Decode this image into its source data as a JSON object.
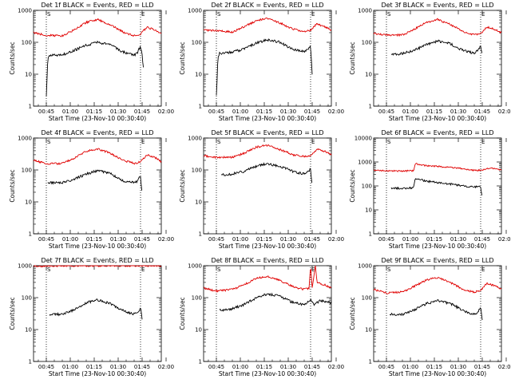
{
  "chart_data": [
    {
      "type": "line",
      "title": "Det 1f BLACK = Events, RED = LLD",
      "xlabel": "Start Time (23-Nov-10 00:30:40)",
      "ylabel": "Counts/sec",
      "ylim": [
        1,
        1000
      ],
      "yscale": "log",
      "yticks": [
        "1",
        "10",
        "100",
        "1000"
      ],
      "xticks": [
        "00:45",
        "01:00",
        "01:15",
        "01:30",
        "01:45",
        "02:00"
      ],
      "xlim_minutes": [
        37,
        117
      ],
      "markers": {
        "S_min": 45,
        "E_min": 104,
        "label_s": "S",
        "label_e": "E"
      },
      "series": [
        {
          "color": "#e00000",
          "x": [
            37,
            45,
            55,
            62,
            70,
            77,
            85,
            93,
            100,
            104,
            108,
            113,
            117
          ],
          "y": [
            200,
            165,
            160,
            240,
            420,
            520,
            360,
            210,
            160,
            180,
            300,
            240,
            190
          ]
        },
        {
          "color": "#000000",
          "x": [
            45,
            46,
            47,
            55,
            62,
            70,
            77,
            85,
            93,
            100,
            102,
            103,
            104,
            105,
            106
          ],
          "y": [
            2,
            35,
            40,
            40,
            55,
            80,
            100,
            85,
            50,
            40,
            45,
            60,
            70,
            40,
            12
          ]
        }
      ]
    },
    {
      "type": "line",
      "title": "Det 2f BLACK = Events, RED = LLD",
      "xlabel": "Start Time (23-Nov-10 00:30:40)",
      "ylabel": "Counts/sec",
      "ylim": [
        1,
        1000
      ],
      "yscale": "log",
      "yticks": [
        "1",
        "10",
        "100",
        "1000"
      ],
      "xticks": [
        "00:45",
        "01:00",
        "01:15",
        "01:30",
        "01:45",
        "02:00"
      ],
      "xlim_minutes": [
        37,
        117
      ],
      "markers": {
        "S_min": 45,
        "E_min": 104,
        "label_s": "S",
        "label_e": "E"
      },
      "series": [
        {
          "color": "#e00000",
          "x": [
            37,
            45,
            55,
            62,
            70,
            77,
            85,
            93,
            100,
            104,
            108,
            113,
            117
          ],
          "y": [
            240,
            230,
            210,
            300,
            480,
            560,
            400,
            260,
            220,
            240,
            380,
            300,
            240
          ]
        },
        {
          "color": "#000000",
          "x": [
            45,
            46,
            47,
            55,
            62,
            70,
            77,
            85,
            93,
            100,
            102,
            103,
            104,
            105
          ],
          "y": [
            2,
            35,
            45,
            50,
            60,
            95,
            120,
            100,
            60,
            50,
            60,
            70,
            80,
            10
          ]
        }
      ]
    },
    {
      "type": "line",
      "title": "Det 3f BLACK = Events, RED = LLD",
      "xlabel": "Start Time (23-Nov-10 00:30:40)",
      "ylabel": "Counts/sec",
      "ylim": [
        1,
        1000
      ],
      "yscale": "log",
      "yticks": [
        "1",
        "10",
        "100",
        "1000"
      ],
      "xticks": [
        "00:45",
        "01:00",
        "01:15",
        "01:30",
        "01:45",
        "02:00"
      ],
      "xlim_minutes": [
        37,
        117
      ],
      "markers": {
        "S_min": 45,
        "E_min": 104,
        "label_s": "S",
        "label_e": "E"
      },
      "series": [
        {
          "color": "#e00000",
          "x": [
            37,
            45,
            55,
            62,
            70,
            77,
            85,
            93,
            100,
            104,
            108,
            113,
            117
          ],
          "y": [
            190,
            170,
            170,
            250,
            420,
            520,
            360,
            220,
            170,
            190,
            300,
            250,
            200
          ]
        },
        {
          "color": "#000000",
          "x": [
            48,
            55,
            62,
            70,
            77,
            85,
            93,
            100,
            102,
            103,
            104,
            105
          ],
          "y": [
            40,
            45,
            55,
            85,
            110,
            90,
            55,
            45,
            55,
            60,
            80,
            40
          ]
        }
      ]
    },
    {
      "type": "line",
      "title": "Det 4f BLACK = Events, RED = LLD",
      "xlabel": "Start Time (23-Nov-10 00:30:40)",
      "ylabel": "Counts/sec",
      "ylim": [
        1,
        1000
      ],
      "yscale": "log",
      "yticks": [
        "1",
        "10",
        "100",
        "1000"
      ],
      "xticks": [
        "00:45",
        "01:00",
        "01:15",
        "01:30",
        "01:45",
        "02:00"
      ],
      "xlim_minutes": [
        37,
        117
      ],
      "markers": {
        "S_min": 45,
        "E_min": 104,
        "label_s": "S",
        "label_e": "E"
      },
      "series": [
        {
          "color": "#e00000",
          "x": [
            37,
            45,
            55,
            62,
            70,
            77,
            85,
            93,
            100,
            104,
            108,
            113,
            117
          ],
          "y": [
            200,
            160,
            160,
            230,
            380,
            460,
            340,
            200,
            160,
            180,
            300,
            250,
            180
          ]
        },
        {
          "color": "#000000",
          "x": [
            46,
            55,
            62,
            70,
            77,
            85,
            93,
            100,
            102,
            103,
            104,
            105
          ],
          "y": [
            40,
            40,
            50,
            75,
            95,
            80,
            45,
            40,
            45,
            55,
            60,
            18
          ]
        }
      ]
    },
    {
      "type": "line",
      "title": "Det 5f BLACK = Events, RED = LLD",
      "xlabel": "Start Time (23-Nov-10 00:30:40)",
      "ylabel": "Counts/sec",
      "ylim": [
        1,
        1000
      ],
      "yscale": "log",
      "yticks": [
        "1",
        "10",
        "100",
        "1000"
      ],
      "xticks": [
        "00:45",
        "01:00",
        "01:15",
        "01:30",
        "01:45",
        "02:00"
      ],
      "xlim_minutes": [
        37,
        117
      ],
      "markers": {
        "S_min": 45,
        "E_min": 104,
        "label_s": "S",
        "label_e": "E"
      },
      "series": [
        {
          "color": "#e00000",
          "x": [
            37,
            45,
            55,
            62,
            70,
            77,
            85,
            93,
            100,
            104,
            108,
            113,
            117
          ],
          "y": [
            280,
            250,
            250,
            330,
            520,
            600,
            430,
            300,
            260,
            280,
            450,
            380,
            300
          ]
        },
        {
          "color": "#000000",
          "x": [
            48,
            55,
            62,
            70,
            77,
            85,
            93,
            100,
            102,
            103,
            104,
            105
          ],
          "y": [
            70,
            75,
            90,
            130,
            160,
            130,
            90,
            75,
            85,
            90,
            110,
            30
          ]
        }
      ]
    },
    {
      "type": "line",
      "title": "Det 6f BLACK = Events, RED = LLD",
      "xlabel": "Start Time (23-Nov-10 00:30:40)",
      "ylabel": "Counts/sec",
      "ylim": [
        1,
        10000
      ],
      "yscale": "log",
      "yticks": [
        "1",
        "10",
        "100",
        "1000",
        "10000"
      ],
      "xticks": [
        "00:45",
        "01:00",
        "01:15",
        "01:30",
        "01:45",
        "02:00"
      ],
      "xlim_minutes": [
        37,
        117
      ],
      "markers": {
        "S_min": 45,
        "E_min": 104,
        "label_s": "S",
        "label_e": "E"
      },
      "series": [
        {
          "color": "#e00000",
          "x": [
            37,
            45,
            55,
            62,
            63,
            70,
            77,
            85,
            93,
            100,
            104,
            108,
            113,
            117
          ],
          "y": [
            450,
            430,
            420,
            430,
            850,
            700,
            650,
            600,
            520,
            450,
            450,
            520,
            550,
            450
          ]
        },
        {
          "color": "#000000",
          "x": [
            48,
            55,
            62,
            63,
            70,
            77,
            85,
            93,
            100,
            102,
            103,
            104,
            105
          ],
          "y": [
            80,
            80,
            85,
            200,
            160,
            140,
            120,
            100,
            90,
            95,
            100,
            90,
            30
          ]
        }
      ]
    },
    {
      "type": "line",
      "title": "Det 7f BLACK = Events, RED = LLD",
      "xlabel": "Start Time (23-Nov-10 00:30:40)",
      "ylabel": "Counts/sec",
      "ylim": [
        1,
        1000
      ],
      "yscale": "log",
      "yticks": [
        "1",
        "10",
        "100",
        "1000"
      ],
      "xticks": [
        "00:45",
        "01:00",
        "01:15",
        "01:30",
        "01:45",
        "02:00"
      ],
      "xlim_minutes": [
        37,
        117
      ],
      "markers": {
        "S_min": 45,
        "E_min": 104,
        "label_s": "S",
        "label_e": "E"
      },
      "series": [
        {
          "color": "#e00000",
          "x": [
            37,
            45,
            55,
            62,
            70,
            77,
            85,
            93,
            100,
            104,
            108,
            113,
            117
          ],
          "y": [
            950,
            980,
            1000,
            1000,
            1000,
            1000,
            1000,
            1000,
            1000,
            1000,
            1000,
            1000,
            980
          ]
        },
        {
          "color": "#000000",
          "x": [
            47,
            55,
            62,
            70,
            77,
            85,
            93,
            100,
            102,
            103,
            104,
            105
          ],
          "y": [
            30,
            30,
            40,
            70,
            85,
            65,
            40,
            30,
            35,
            40,
            50,
            20
          ]
        }
      ]
    },
    {
      "type": "line",
      "title": "Det 8f BLACK = Events, RED = LLD",
      "xlabel": "Start Time (23-Nov-10 00:30:40)",
      "ylabel": "Counts/sec",
      "ylim": [
        1,
        1000
      ],
      "yscale": "log",
      "yticks": [
        "1",
        "10",
        "100",
        "1000"
      ],
      "xticks": [
        "00:45",
        "01:00",
        "01:15",
        "01:30",
        "01:45",
        "02:00"
      ],
      "xlim_minutes": [
        37,
        117
      ],
      "markers": {
        "S_min": 45,
        "E_min": 104,
        "label_s": "S",
        "label_e": "E"
      },
      "series": [
        {
          "color": "#e00000",
          "x": [
            37,
            45,
            55,
            62,
            70,
            77,
            85,
            93,
            100,
            103,
            104,
            105,
            107,
            108,
            113,
            117
          ],
          "y": [
            200,
            160,
            180,
            250,
            400,
            460,
            340,
            220,
            180,
            200,
            1000,
            200,
            1000,
            300,
            250,
            200
          ]
        },
        {
          "color": "#000000",
          "x": [
            47,
            55,
            62,
            70,
            77,
            85,
            93,
            100,
            102,
            103,
            104,
            106,
            110,
            117
          ],
          "y": [
            40,
            45,
            60,
            100,
            130,
            110,
            70,
            60,
            70,
            80,
            90,
            60,
            80,
            70
          ]
        }
      ]
    },
    {
      "type": "line",
      "title": "Det 9f BLACK = Events, RED = LLD",
      "xlabel": "Start Time (23-Nov-10 00:30:40)",
      "ylabel": "Counts/sec",
      "ylim": [
        1,
        1000
      ],
      "yscale": "log",
      "yticks": [
        "1",
        "10",
        "100",
        "1000"
      ],
      "xticks": [
        "00:45",
        "01:00",
        "01:15",
        "01:30",
        "01:45",
        "02:00"
      ],
      "xlim_minutes": [
        37,
        117
      ],
      "markers": {
        "S_min": 45,
        "E_min": 104,
        "label_s": "S",
        "label_e": "E"
      },
      "series": [
        {
          "color": "#e00000",
          "x": [
            37,
            45,
            55,
            62,
            70,
            77,
            85,
            93,
            100,
            104,
            108,
            113,
            117
          ],
          "y": [
            180,
            140,
            150,
            220,
            360,
            420,
            300,
            180,
            150,
            170,
            280,
            230,
            180
          ]
        },
        {
          "color": "#000000",
          "x": [
            47,
            55,
            62,
            70,
            77,
            85,
            93,
            100,
            102,
            103,
            104,
            105
          ],
          "y": [
            30,
            30,
            40,
            65,
            80,
            65,
            40,
            30,
            35,
            40,
            50,
            20
          ]
        }
      ]
    }
  ]
}
